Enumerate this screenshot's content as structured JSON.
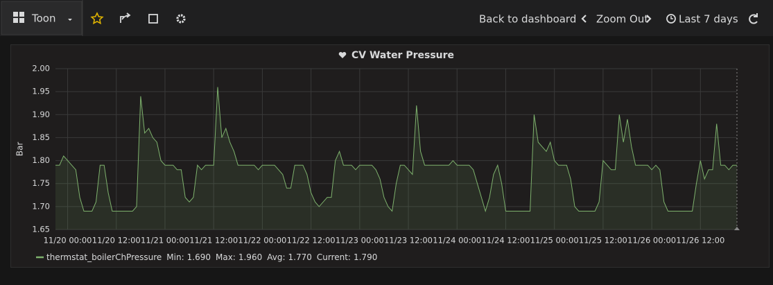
{
  "nav": {
    "dashboard_title": "Toon",
    "back": "Back to dashboard",
    "zoom": "Zoom Out",
    "time_range": "Last 7 days"
  },
  "chart_data": {
    "type": "line",
    "title": "CV Water Pressure",
    "y_label": "Bar",
    "x": [
      "11/19 21:00",
      "11/19 22:00",
      "11/19 23:00",
      "11/20 00:00",
      "11/20 02:00",
      "11/20 03:00",
      "11/20 04:00",
      "11/20 06:00",
      "11/20 07:00",
      "11/20 08:00",
      "11/20 09:00",
      "11/20 10:00",
      "11/20 11:00",
      "11/20 16:00",
      "11/20 17:00",
      "11/20 18:00",
      "11/20 19:00",
      "11/20 20:00",
      "11/20 21:00",
      "11/20 22:00",
      "11/20 23:00",
      "11/21 00:00",
      "11/21 02:00",
      "11/21 03:00",
      "11/21 04:00",
      "11/21 05:00",
      "11/21 06:00",
      "11/21 07:00",
      "11/21 08:00",
      "11/21 09:00",
      "11/21 10:00",
      "11/21 12:00",
      "11/21 13:00",
      "11/21 14:00",
      "11/21 15:00",
      "11/21 16:00",
      "11/21 17:00",
      "11/21 18:00",
      "11/21 22:00",
      "11/21 23:00",
      "11/22 00:00",
      "11/22 03:00",
      "11/22 05:00",
      "11/22 06:00",
      "11/22 07:00",
      "11/22 08:00",
      "11/22 10:00",
      "11/22 11:00",
      "11/22 12:00",
      "11/22 13:00",
      "11/22 14:00",
      "11/22 16:00",
      "11/22 17:00",
      "11/22 18:00",
      "11/22 19:00",
      "11/22 20:00",
      "11/22 22:00",
      "11/22 23:00",
      "11/23 00:00",
      "11/23 03:00",
      "11/23 04:00",
      "11/23 05:00",
      "11/23 06:00",
      "11/23 07:00",
      "11/23 08:00",
      "11/23 09:00",
      "11/23 10:00",
      "11/23 11:00",
      "11/23 12:00",
      "11/23 13:00",
      "11/23 14:00",
      "11/23 15:00",
      "11/23 16:00",
      "11/23 22:00",
      "11/23 23:00",
      "11/24 00:00",
      "11/24 03:00",
      "11/24 04:00",
      "11/24 05:00",
      "11/24 06:00",
      "11/24 07:00",
      "11/24 08:00",
      "11/24 09:00",
      "11/24 10:00",
      "11/24 11:00",
      "11/24 12:00",
      "11/24 18:00",
      "11/24 19:00",
      "11/24 20:00",
      "11/24 21:00",
      "11/24 22:00",
      "11/24 23:00",
      "11/25 00:00",
      "11/25 01:00",
      "11/25 03:00",
      "11/25 04:00",
      "11/25 05:00",
      "11/25 06:00",
      "11/25 10:00",
      "11/25 11:00",
      "11/25 12:00",
      "11/25 13:00",
      "11/25 14:00",
      "11/25 15:00",
      "11/25 16:00",
      "11/25 17:00",
      "11/25 18:00",
      "11/25 19:00",
      "11/25 20:00",
      "11/25 23:00",
      "11/26 00:00",
      "11/26 01:00",
      "11/26 02:00",
      "11/26 03:00",
      "11/26 04:00",
      "11/26 10:00",
      "11/26 11:00",
      "11/26 12:00",
      "11/26 13:00",
      "11/26 14:00",
      "11/26 15:00",
      "11/26 16:00",
      "11/26 17:00",
      "11/26 18:00",
      "11/26 19:00",
      "11/26 20:00",
      "11/26 21:00"
    ],
    "series": [
      {
        "name": "thermstat_boilerChPressure",
        "color": "#7eb26d",
        "values": [
          1.79,
          1.79,
          1.81,
          1.8,
          1.78,
          1.72,
          1.69,
          1.69,
          1.71,
          1.79,
          1.79,
          1.73,
          1.69,
          1.69,
          1.7,
          1.94,
          1.86,
          1.87,
          1.85,
          1.84,
          1.8,
          1.79,
          1.79,
          1.78,
          1.78,
          1.72,
          1.71,
          1.72,
          1.79,
          1.78,
          1.79,
          1.79,
          1.96,
          1.85,
          1.87,
          1.84,
          1.82,
          1.79,
          1.79,
          1.78,
          1.79,
          1.79,
          1.77,
          1.74,
          1.74,
          1.79,
          1.79,
          1.77,
          1.73,
          1.71,
          1.7,
          1.72,
          1.72,
          1.8,
          1.82,
          1.79,
          1.79,
          1.78,
          1.79,
          1.79,
          1.78,
          1.76,
          1.72,
          1.7,
          1.69,
          1.75,
          1.79,
          1.79,
          1.78,
          1.77,
          1.92,
          1.82,
          1.79,
          1.79,
          1.8,
          1.79,
          1.79,
          1.78,
          1.75,
          1.72,
          1.69,
          1.72,
          1.77,
          1.79,
          1.75,
          1.69,
          1.69,
          1.9,
          1.84,
          1.83,
          1.82,
          1.84,
          1.8,
          1.79,
          1.79,
          1.76,
          1.7,
          1.69,
          1.69,
          1.71,
          1.8,
          1.79,
          1.78,
          1.78,
          1.9,
          1.84,
          1.89,
          1.83,
          1.79,
          1.79,
          1.78,
          1.79,
          1.78,
          1.71,
          1.69,
          1.69,
          1.75,
          1.8,
          1.76,
          1.78,
          1.78,
          1.88,
          1.79,
          1.79,
          1.78,
          1.79,
          1.79
        ]
      }
    ],
    "xlim": [
      "11/19 21:00",
      "11/26 21:00"
    ],
    "xticks": [
      "11/20 00:00",
      "11/20 12:00",
      "11/21 00:00",
      "11/21 12:00",
      "11/22 00:00",
      "11/22 12:00",
      "11/23 00:00",
      "11/23 12:00",
      "11/24 00:00",
      "11/24 12:00",
      "11/25 00:00",
      "11/25 12:00",
      "11/26 00:00",
      "11/26 12:00"
    ],
    "ylim": [
      1.65,
      2.0
    ],
    "yticks": [
      {
        "value": 1.65,
        "label": "1.65"
      },
      {
        "value": 1.7,
        "label": "1.70"
      },
      {
        "value": 1.75,
        "label": "1.75"
      },
      {
        "value": 1.8,
        "label": "1.80"
      },
      {
        "value": 1.85,
        "label": "1.85"
      },
      {
        "value": 1.9,
        "label": "1.90"
      },
      {
        "value": 1.95,
        "label": "1.95"
      },
      {
        "value": 2.0,
        "label": "2.00"
      }
    ],
    "grid": true,
    "legend_stats": [
      {
        "label": "Min:",
        "value": "1.690"
      },
      {
        "label": "Max:",
        "value": "1.960"
      },
      {
        "label": "Avg:",
        "value": "1.770"
      },
      {
        "label": "Current:",
        "value": "1.790"
      }
    ]
  }
}
